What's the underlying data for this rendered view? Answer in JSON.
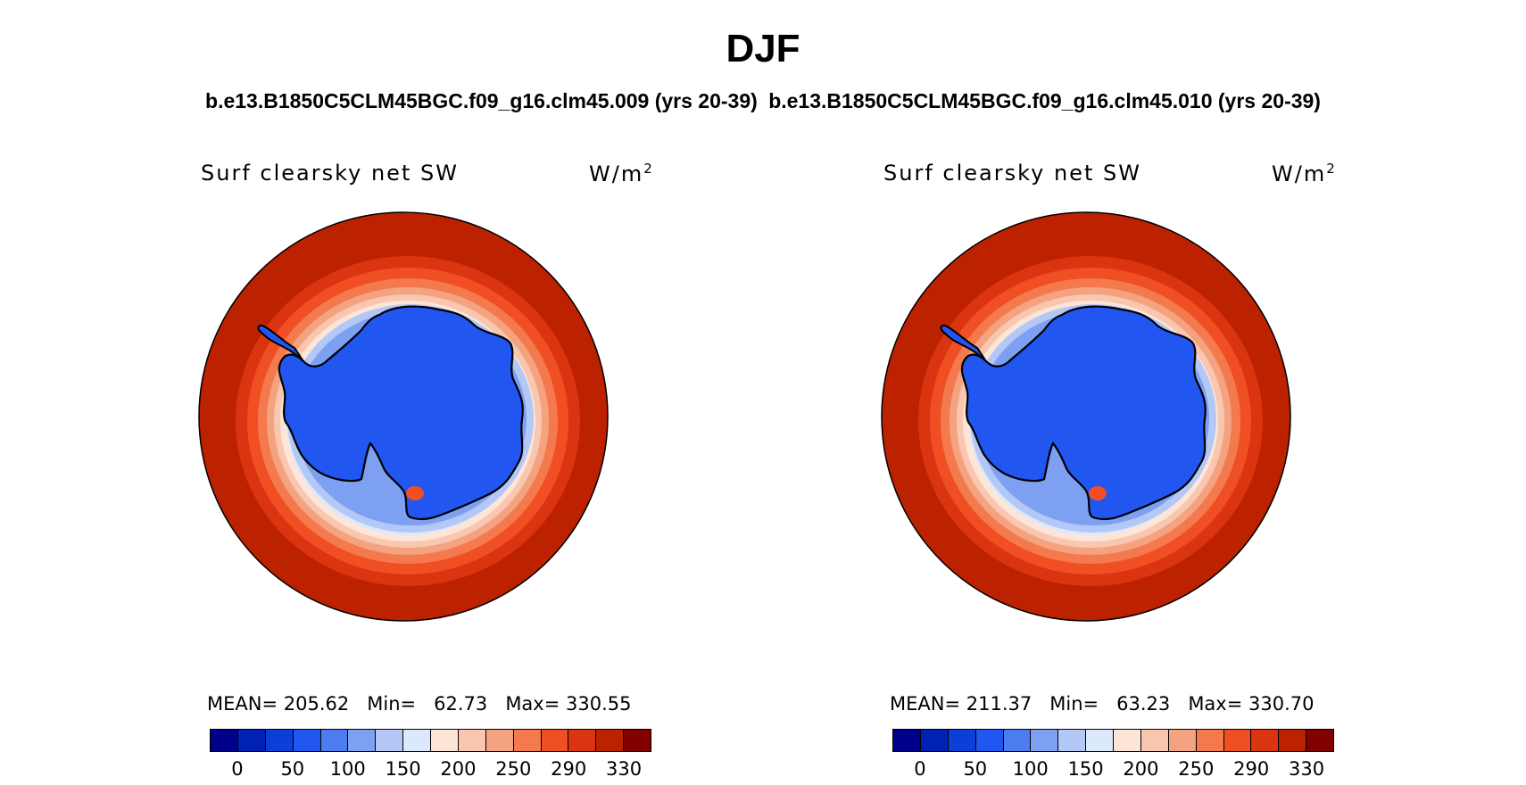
{
  "figure": {
    "title": "DJF",
    "cases": [
      "b.e13.B1850C5CLM45BGC.f09_g16.clm45.009 (yrs 20-39)",
      "b.e13.B1850C5CLM45BGC.f09_g16.clm45.010 (yrs 20-39)"
    ]
  },
  "panels": [
    {
      "variable": "Surf clearsky net SW",
      "units": "W/m",
      "units_sup": "2",
      "stats": {
        "mean_label": "MEAN=",
        "mean": "205.62",
        "min_label": "Min=",
        "min": "62.73",
        "max_label": "Max=",
        "max": "330.55"
      }
    },
    {
      "variable": "Surf clearsky net SW",
      "units": "W/m",
      "units_sup": "2",
      "stats": {
        "mean_label": "MEAN=",
        "mean": "211.37",
        "min_label": "Min=",
        "min": "63.23",
        "max_label": "Max=",
        "max": "330.70"
      }
    }
  ],
  "colorbar": {
    "levels": [
      "0",
      "50",
      "100",
      "150",
      "200",
      "250",
      "290",
      "330"
    ],
    "colors": [
      "#00008B",
      "#0022B4",
      "#0B3FD8",
      "#2256F0",
      "#4C7CEF",
      "#7EA0F2",
      "#B3C8F7",
      "#DCE8FC",
      "#FDE6D7",
      "#F9C6B0",
      "#F4A381",
      "#F47A4E",
      "#F04F24",
      "#DB3410",
      "#BC2200",
      "#820000"
    ]
  },
  "map_colors": {
    "ocean_far": "#BC2200",
    "continent": "#2256F0",
    "coastline": "#000000"
  }
}
